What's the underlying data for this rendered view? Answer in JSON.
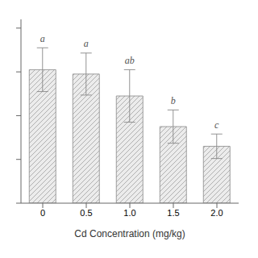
{
  "chart_data": {
    "type": "bar",
    "xlabel": "Cd Concentration (mg/kg)",
    "categories": [
      "0",
      "0.5",
      "1.0",
      "1.5",
      "2.0"
    ],
    "values": [
      3.05,
      2.95,
      2.45,
      1.75,
      1.3
    ],
    "errors": [
      0.5,
      0.48,
      0.6,
      0.38,
      0.28
    ],
    "significance": [
      "a",
      "a",
      "ab",
      "b",
      "c"
    ],
    "ylim": [
      0,
      4.2
    ],
    "yticks": [
      0,
      1,
      2,
      3,
      4
    ],
    "color": "#ececec",
    "grid": false,
    "tick_labels": "x"
  }
}
